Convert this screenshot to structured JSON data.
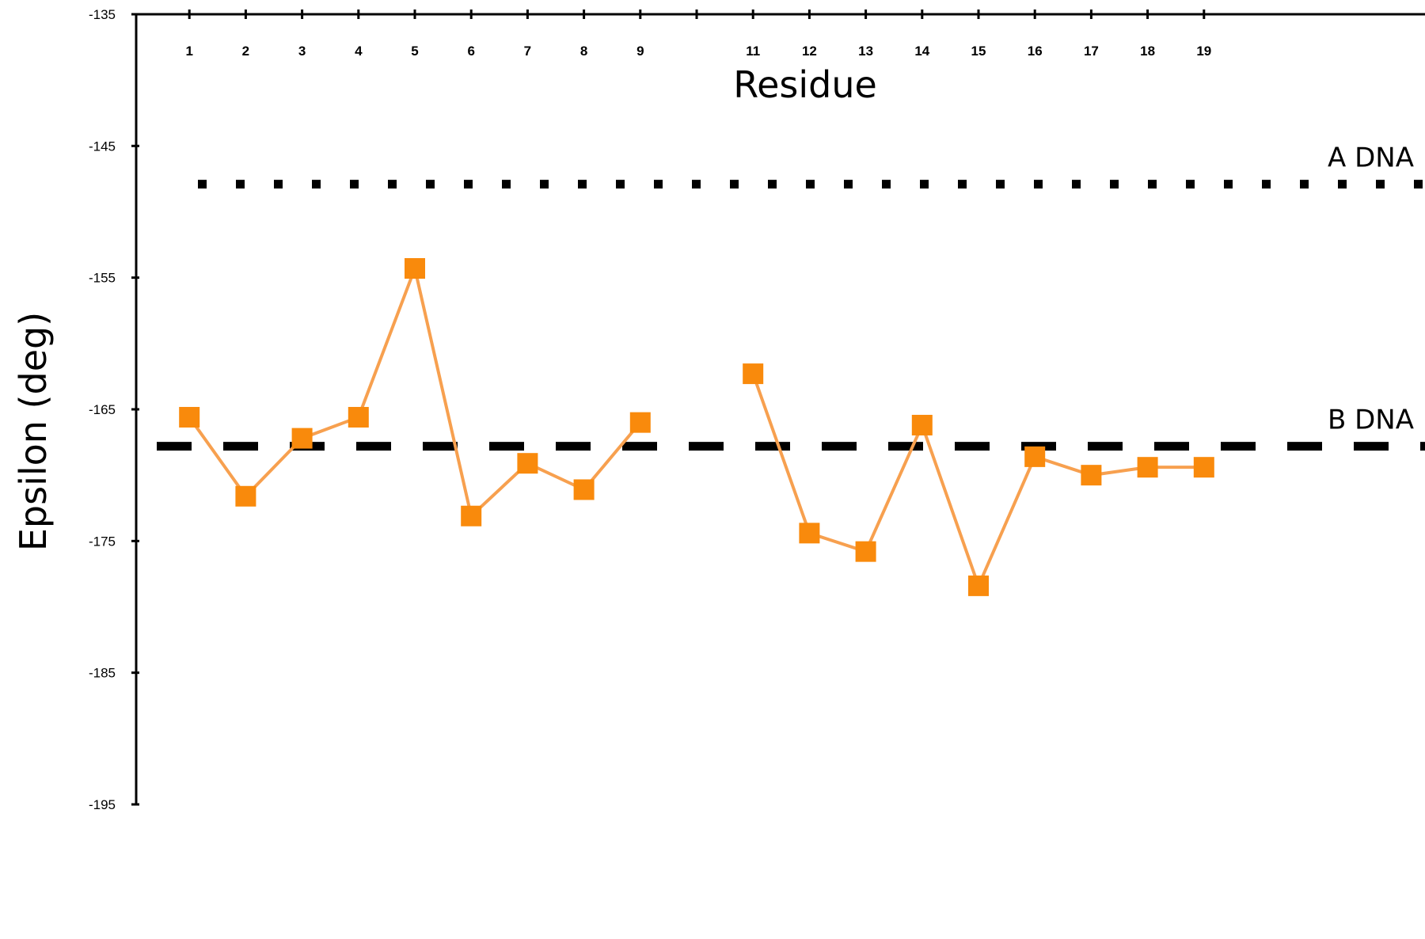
{
  "chart_data": {
    "type": "line",
    "xlabel": "Residue",
    "ylabel": "Epsilon (deg)",
    "xlim": [
      0,
      19.7
    ],
    "ylim": [
      -195,
      -135
    ],
    "y_ticks": [
      -135,
      -145,
      -155,
      -165,
      -175,
      -185,
      -195
    ],
    "x_ticks": [
      1,
      2,
      3,
      4,
      5,
      6,
      7,
      8,
      9,
      11,
      12,
      13,
      14,
      15,
      16,
      17,
      18,
      19
    ],
    "series": [
      {
        "color": "#f7a04f",
        "marker_color": "#f98a0c",
        "marker": "square",
        "segments": [
          [
            [
              1,
              -165.6
            ],
            [
              2,
              -171.6
            ],
            [
              3,
              -167.2
            ],
            [
              4,
              -165.6
            ],
            [
              5,
              -154.3
            ],
            [
              6,
              -173.1
            ],
            [
              7,
              -169.1
            ],
            [
              8,
              -171.1
            ],
            [
              9,
              -166.0
            ]
          ],
          [
            [
              11,
              -162.3
            ],
            [
              12,
              -174.4
            ],
            [
              13,
              -175.8
            ],
            [
              14,
              -166.2
            ],
            [
              15,
              -178.4
            ],
            [
              16,
              -168.6
            ],
            [
              17,
              -170.0
            ],
            [
              18,
              -169.4
            ],
            [
              19,
              -169.4
            ]
          ]
        ]
      }
    ],
    "reference_lines": [
      {
        "label": "A DNA",
        "y": -147.9,
        "style": "dotted"
      },
      {
        "label": "B DNA",
        "y": -167.8,
        "style": "dashed"
      }
    ],
    "grid": false,
    "x_axis_position": "top"
  }
}
